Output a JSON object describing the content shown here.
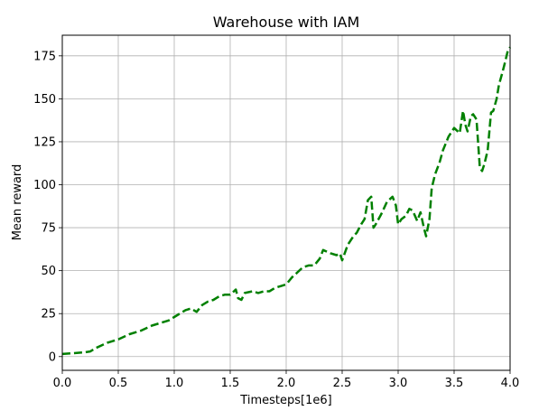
{
  "chart_data": {
    "type": "line",
    "title": "Warehouse with IAM",
    "xlabel": "Timesteps[1e6]",
    "ylabel": "Mean reward",
    "xlim": [
      0.0,
      4.0
    ],
    "ylim": [
      -8,
      187
    ],
    "xticks": [
      0.0,
      0.5,
      1.0,
      1.5,
      2.0,
      2.5,
      3.0,
      3.5,
      4.0
    ],
    "xtick_labels": [
      "0.0",
      "0.5",
      "1.0",
      "1.5",
      "2.0",
      "2.5",
      "3.0",
      "3.5",
      "4.0"
    ],
    "yticks": [
      0,
      25,
      50,
      75,
      100,
      125,
      150,
      175
    ],
    "ytick_labels": [
      "0",
      "25",
      "50",
      "75",
      "100",
      "125",
      "150",
      "175"
    ],
    "grid": true,
    "legend": false,
    "series": [
      {
        "color": "#008000",
        "linestyle": "dashed",
        "x": [
          0.0,
          0.1,
          0.2,
          0.25,
          0.3,
          0.4,
          0.5,
          0.6,
          0.7,
          0.8,
          0.9,
          0.95,
          1.0,
          1.05,
          1.1,
          1.15,
          1.2,
          1.25,
          1.3,
          1.35,
          1.4,
          1.45,
          1.5,
          1.55,
          1.57,
          1.6,
          1.63,
          1.7,
          1.75,
          1.8,
          1.85,
          1.9,
          1.95,
          2.0,
          2.05,
          2.1,
          2.15,
          2.2,
          2.25,
          2.3,
          2.33,
          2.4,
          2.45,
          2.48,
          2.5,
          2.55,
          2.6,
          2.63,
          2.67,
          2.7,
          2.73,
          2.76,
          2.78,
          2.8,
          2.85,
          2.9,
          2.95,
          2.98,
          3.0,
          3.03,
          3.07,
          3.1,
          3.13,
          3.17,
          3.2,
          3.23,
          3.25,
          3.28,
          3.3,
          3.33,
          3.37,
          3.4,
          3.45,
          3.5,
          3.55,
          3.58,
          3.6,
          3.62,
          3.65,
          3.67,
          3.7,
          3.73,
          3.75,
          3.77,
          3.8,
          3.83,
          3.85,
          3.88,
          3.9,
          3.93,
          3.95,
          3.98,
          4.0
        ],
        "y": [
          1.5,
          2,
          2.5,
          3,
          5,
          8,
          10,
          13,
          15,
          18,
          20,
          21,
          23,
          25,
          27,
          28,
          26,
          30,
          32,
          33,
          35,
          36,
          36,
          39,
          34,
          33,
          37,
          38,
          37,
          38,
          38,
          40,
          41,
          42,
          46,
          49,
          52,
          53,
          53,
          57,
          62,
          60,
          59,
          60,
          56,
          65,
          70,
          72,
          77,
          80,
          91,
          93,
          75,
          77,
          83,
          90,
          93,
          88,
          77,
          80,
          82,
          86,
          85,
          79,
          84,
          75,
          70,
          80,
          98,
          106,
          113,
          120,
          128,
          133,
          130,
          143,
          135,
          131,
          140,
          141,
          138,
          110,
          108,
          112,
          120,
          142,
          143,
          150,
          158,
          165,
          170,
          178,
          180
        ]
      }
    ]
  }
}
